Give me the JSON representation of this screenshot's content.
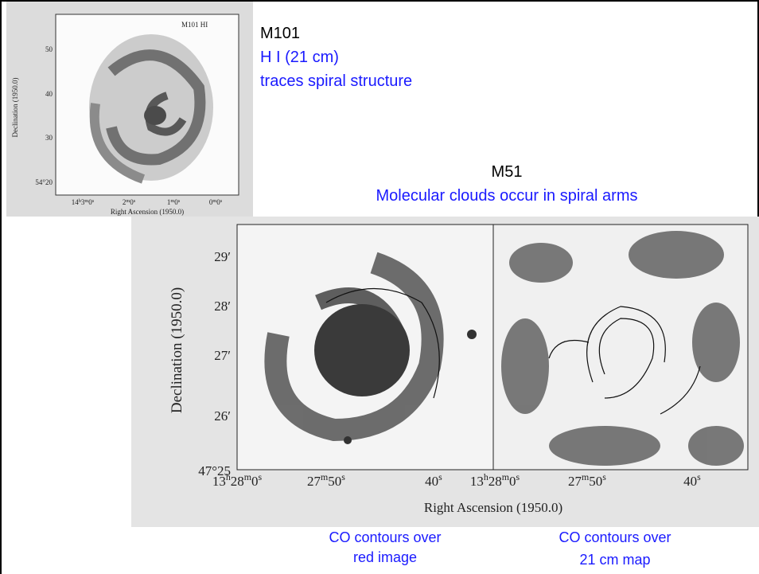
{
  "m101": {
    "figure": {
      "label": "M101 HI",
      "y_axis_title": "Declination (1950.0)",
      "x_axis_title": "Right Ascension (1950.0)",
      "y_ticks": [
        "50",
        "40",
        "30",
        "54°20"
      ],
      "x_ticks": [
        "14h3m0s",
        "2m0s",
        "1m0s",
        "0m0s"
      ]
    },
    "caption": [
      "M101",
      "H I (21 cm)",
      "traces spiral structure"
    ]
  },
  "m51": {
    "title": "M51",
    "subtitle": "Molecular clouds occur in spiral arms",
    "figure": {
      "y_axis_title": "Declination (1950.0)",
      "x_axis_title": "Right Ascension (1950.0)",
      "y_ticks": [
        "29′",
        "28′",
        "27′",
        "26′",
        "47°25"
      ],
      "x_ticks": [
        "13h28m0s",
        "27m50s",
        "40s",
        "13h28m0s",
        "27m50s",
        "40s"
      ]
    },
    "panel_captions": [
      [
        "CO contours over",
        "red image"
      ],
      [
        "CO contours over",
        "21 cm map"
      ]
    ]
  }
}
